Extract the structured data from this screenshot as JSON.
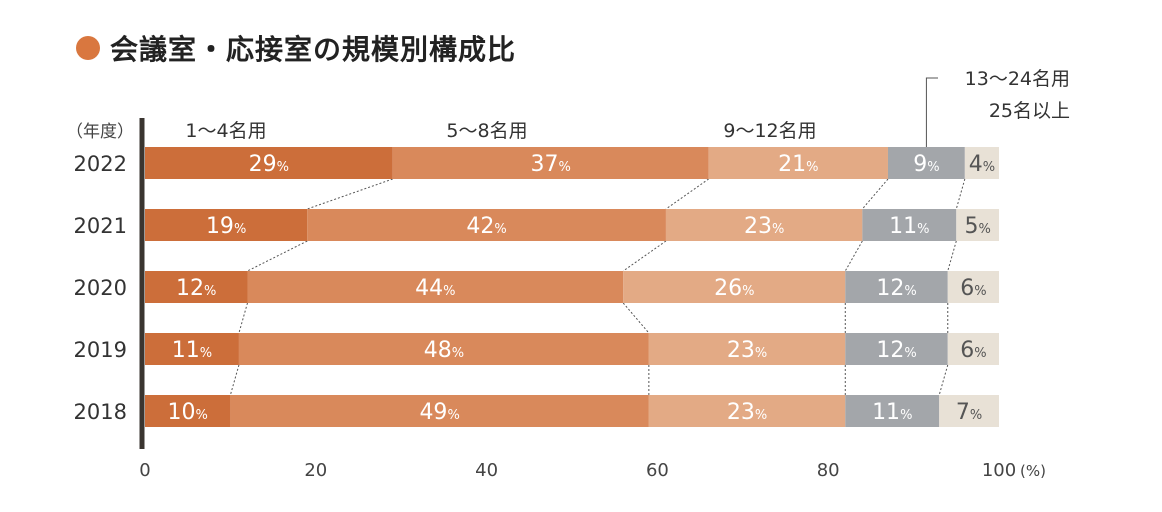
{
  "chart_data": {
    "type": "bar",
    "orientation": "horizontal",
    "stacked": true,
    "title": "会議室・応接室の規模別構成比",
    "ylabel": "（年度）",
    "xlabel": "(%)",
    "xlim": [
      0,
      100
    ],
    "xticks": [
      "0",
      "20",
      "40",
      "60",
      "80",
      "100"
    ],
    "categories": [
      "2022",
      "2021",
      "2020",
      "2019",
      "2018"
    ],
    "series": [
      {
        "name": "1〜4名用",
        "color": "#cc6e3a",
        "values": [
          29,
          19,
          12,
          11,
          10
        ]
      },
      {
        "name": "5〜8名用",
        "color": "#d9895b",
        "values": [
          37,
          42,
          44,
          48,
          49
        ]
      },
      {
        "name": "9〜12名用",
        "color": "#e3aa85",
        "values": [
          21,
          23,
          26,
          23,
          23
        ]
      },
      {
        "name": "13〜24名用",
        "color": "#a3a6aa",
        "values": [
          9,
          11,
          12,
          12,
          11
        ]
      },
      {
        "name": "25名以上",
        "color": "#e8e1d6",
        "values": [
          4,
          5,
          6,
          6,
          7
        ]
      }
    ],
    "value_suffix": "%",
    "light_label_color": "#ffffff",
    "dark_label_color": "#555555",
    "accent_color": "#d9773f",
    "axis_color": "#3a3530",
    "connector_color": "#555555"
  }
}
